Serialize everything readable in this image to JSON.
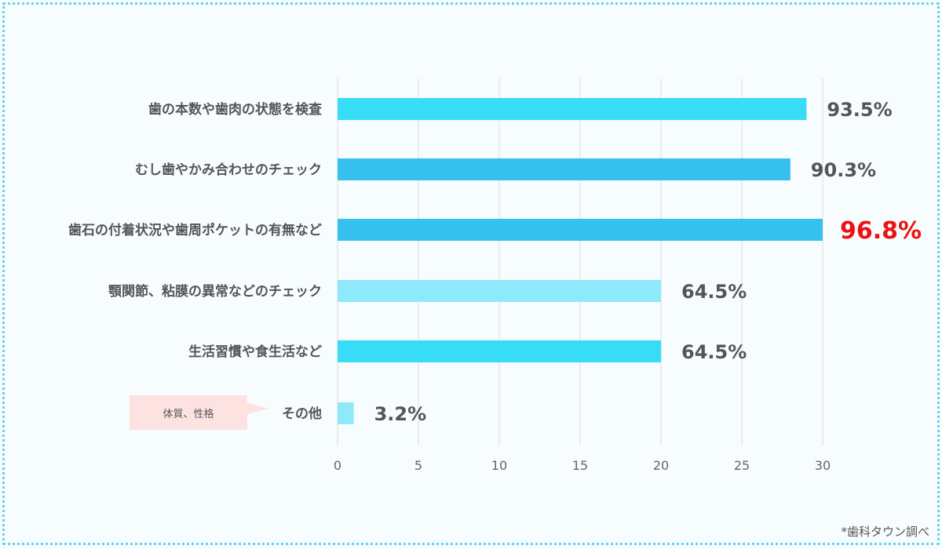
{
  "chart_data": {
    "type": "bar",
    "orientation": "horizontal",
    "categories": [
      "歯の本数や歯肉の状態を検査",
      "むし歯やかみ合わせのチェック",
      "歯石の付着状況や歯周ポケットの有無など",
      "顎関節、粘膜の異常などのチェック",
      "生活習慣や食生活など",
      "その他"
    ],
    "values": [
      29,
      28,
      30,
      20,
      20,
      1
    ],
    "data_labels": [
      "93.5%",
      "90.3%",
      "96.8%",
      "64.5%",
      "64.5%",
      "3.2%"
    ],
    "highlight_index": 2,
    "xlim": [
      0,
      30
    ],
    "xticks": [
      0,
      5,
      10,
      15,
      20,
      25,
      30
    ],
    "grid": true,
    "bar_colors": [
      "#37dcf6",
      "#35c0ee",
      "#35c0ee",
      "#8ee9fa",
      "#37dcf6",
      "#8ee9fa"
    ],
    "highlight_label_color": "#ee1111",
    "annotation": {
      "text": "体質、性格",
      "target_index": 5
    },
    "source": "*歯科タウン調べ"
  }
}
